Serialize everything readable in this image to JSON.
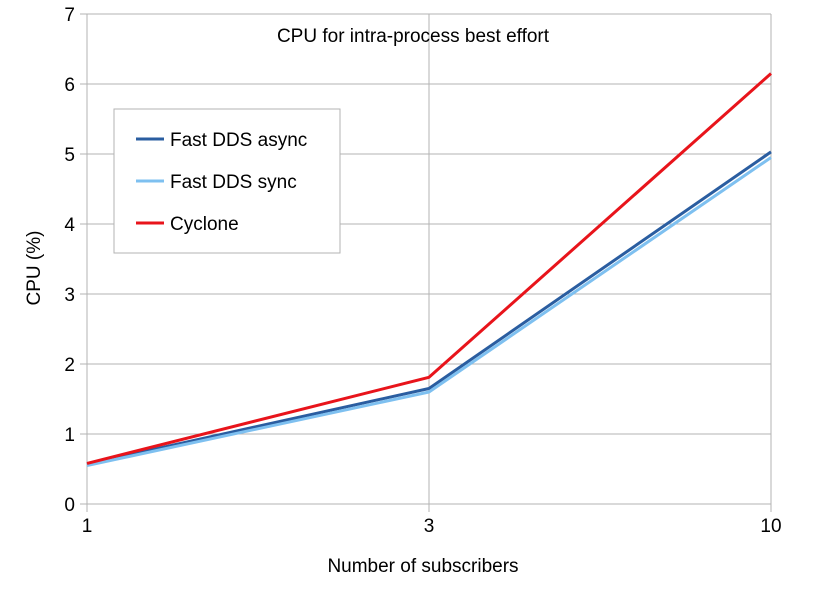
{
  "chart_data": {
    "type": "line",
    "title": "CPU for intra-process best effort",
    "xlabel": "Number of subscribers",
    "ylabel": "CPU (%)",
    "x": [
      1,
      3,
      10
    ],
    "x_tick_labels": [
      "1",
      "3",
      "10"
    ],
    "ylim": [
      0,
      7
    ],
    "y_ticks": [
      0,
      1,
      2,
      3,
      4,
      5,
      6,
      7
    ],
    "grid": true,
    "legend_position": "top-left",
    "series": [
      {
        "name": "Fast DDS async",
        "values": [
          0.57,
          1.65,
          5.03
        ],
        "color": "#2a5da0"
      },
      {
        "name": "Fast DDS sync",
        "values": [
          0.55,
          1.6,
          4.95
        ],
        "color": "#7ec0f0"
      },
      {
        "name": "Cyclone",
        "values": [
          0.58,
          1.81,
          6.15
        ],
        "color": "#e8141b"
      }
    ]
  }
}
